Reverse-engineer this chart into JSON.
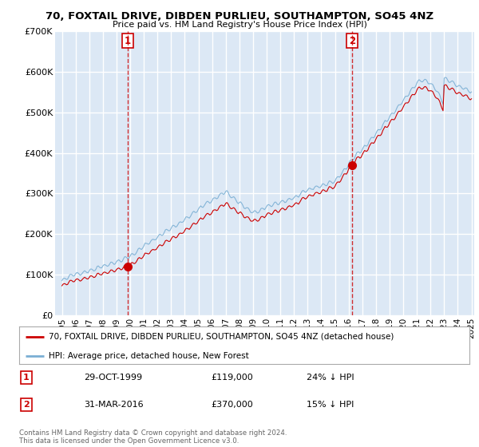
{
  "title": "70, FOXTAIL DRIVE, DIBDEN PURLIEU, SOUTHAMPTON, SO45 4NZ",
  "subtitle": "Price paid vs. HM Land Registry's House Price Index (HPI)",
  "background_color": "#ffffff",
  "plot_bg_color": "#dce8f5",
  "grid_color": "#ffffff",
  "ylim": [
    0,
    700000
  ],
  "yticks": [
    0,
    100000,
    200000,
    300000,
    400000,
    500000,
    600000,
    700000
  ],
  "ytick_labels": [
    "£0",
    "£100K",
    "£200K",
    "£300K",
    "£400K",
    "£500K",
    "£600K",
    "£700K"
  ],
  "marker1": {
    "x": 4.83,
    "value": 119000,
    "label": "1",
    "date_str": "29-OCT-1999",
    "amount": "£119,000",
    "pct": "24% ↓ HPI"
  },
  "marker2": {
    "x": 21.25,
    "value": 370000,
    "label": "2",
    "date_str": "31-MAR-2016",
    "amount": "£370,000",
    "pct": "15% ↓ HPI"
  },
  "vline1_x": 4.83,
  "vline2_x": 21.25,
  "legend_line1": "70, FOXTAIL DRIVE, DIBDEN PURLIEU, SOUTHAMPTON, SO45 4NZ (detached house)",
  "legend_line2": "HPI: Average price, detached house, New Forest",
  "footnote": "Contains HM Land Registry data © Crown copyright and database right 2024.\nThis data is licensed under the Open Government Licence v3.0.",
  "red_color": "#cc0000",
  "blue_color": "#7aafd4",
  "xlim": [
    -0.5,
    30.2
  ],
  "xtick_positions": [
    0,
    1,
    2,
    3,
    4,
    5,
    6,
    7,
    8,
    9,
    10,
    11,
    12,
    13,
    14,
    15,
    16,
    17,
    18,
    19,
    20,
    21,
    22,
    23,
    24,
    25,
    26,
    27,
    28,
    29,
    30
  ],
  "xtick_labels": [
    "1995",
    "1996",
    "1997",
    "1998",
    "1999",
    "2000",
    "2001",
    "2002",
    "2003",
    "2004",
    "2005",
    "2006",
    "2007",
    "2008",
    "2009",
    "2010",
    "2011",
    "2012",
    "2013",
    "2014",
    "2015",
    "2016",
    "2017",
    "2018",
    "2019",
    "2020",
    "2021",
    "2022",
    "2023",
    "2024",
    "2025"
  ],
  "sale1_x": 4.83,
  "sale1_y": 119000,
  "sale2_x": 21.25,
  "sale2_y": 370000
}
